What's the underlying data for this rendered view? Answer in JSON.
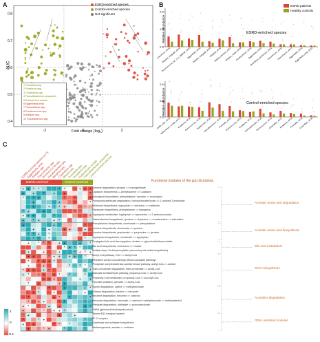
{
  "panelA": {
    "label": "A",
    "xlabel": "Fold change (log₂)",
    "ylabel": "AUC",
    "legend": [
      {
        "name": "ESRD-enriched species",
        "color": "#d9473c"
      },
      {
        "name": "Control-enriched species",
        "color": "#9aa31a"
      },
      {
        "name": "Not significant",
        "color": "#7a7a7a"
      }
    ],
    "species_key": [
      "1  Prevotella spp.",
      "2  Roseburia spp.",
      "3  Clostridium spp.",
      "4  Faecalibacterium prausnitzii",
      "5  Eubacterium rectale",
      "6  Eggerthella lenta",
      "7  Flavonifractor spp.",
      "8  Ruminococcus spp.",
      "9  Alistipes spp.",
      "10 Fusobacterium spp."
    ]
  },
  "panelB": {
    "label": "B",
    "ylabel": "Relative abundance",
    "legend": [
      {
        "name": "ESRD patients",
        "color": "#d9473c"
      },
      {
        "name": "Healthy controls",
        "color": "#9aa31a"
      }
    ],
    "top_title": "ESRD-enriched species",
    "bottom_title": "Control-enriched species",
    "top_species": [
      "Ruminococcaceae_bacterium_AF01",
      "Alistipes_finegoldii_AF02",
      "Ruminococcus_sp._5_1_39BFAA_AF03",
      "Eggerthella_AF04",
      "Alistipes_finegoldii_AF05",
      "Bilophila_AF06",
      "Blautia_hansenii_AF07",
      "Alistipes_shahii_AF08",
      "Fusobacterium_AF09",
      "Eggerthella_AF10",
      "Clostridium_symbiosum_AF11",
      "Flavonifractor_AF12",
      "Flavonifractor_AF13",
      "Eggerthella_AF14",
      "Eggerthella_lenta_AF15"
    ],
    "bottom_species": [
      "Prevotella_copri_AF16",
      "Eubacterium_rectale_AF17",
      "Roseburia_AF18",
      "Ruminococcus_AF19",
      "Eubacterium_AF20",
      "Faecalibacterium_AF21",
      "Prevotella_AF22",
      "Ruminococcus_AF23",
      "Roseburia_AF24",
      "Lachnospiraceae_AF25",
      "Ruminococcus_AF26",
      "Clostridium_AF27",
      "Roseburia_AF28",
      "Prevotella_AF29",
      "Clostridium_AF30"
    ]
  },
  "panelC": {
    "label": "C",
    "header_esrd": "ESRD-enriched",
    "header_control": "Control-enriched",
    "title": "Functional modules of the gut microbiota",
    "columns": [
      "ESRD-enriched species (n=?)",
      "Eggerthella lenta",
      "Alistipes spp.",
      "Flavonifractor spp.",
      "Ruminococcus spp.",
      "Fusobacterium spp.",
      "Bilophila spp.",
      "Clostridium spp.",
      "Blautia spp.",
      "Prevotella spp.",
      "Roseburia spp.",
      "Eubacterium rectale",
      "Faecalibacterium prausnitzii",
      "Control-enriched species"
    ],
    "functions": [
      "Tyrosine degradation, tyrosine => homogentisate",
      "Capsaicin biosynthesis, L-phenylalanine => Capsaicin",
      "Monolignol biosynthesis, phenylalanine / tyrosine => monolignol",
      "Homoprotocatechuate degradation, homoprotocatechuate => 2-oxohept-3-enedioate",
      "Melatonin biosynthesis, tryptophan => serotonin => melatonin",
      "Flavanone biosynthesis, phenylalanine => naringenin",
      "Tryptophan metabolism, tryptophan => kynurenine => 2-aminomuconate",
      "Catecholamine biosynthesis, tyrosine => dopamine => noradrenaline => adrenaline",
      "Phenylalanine biosynthesis, chorismate => phenylalanine",
      "Tyrosine biosynthesis, chorismate => tyrosine",
      "Tyrosine biosynthesis, prephenate => pretyrosine => tyrosine",
      "Tryptophan biosynthesis, chorismate => tryptophan",
      "Conjugated bile acid deconjugation, cholate => glycocholate/taurocholate",
      "Bile acid biosynthesis, cholesterol => cholate",
      "Multiple steps 7α-dehydroxylation (secondary bile acids biosynthesis)",
      "Acetyl-CoA pathway, CO2 => acetyl-CoA",
      "Reductive acetyl-CoA pathway (Wood-Ljungdahl pathway)",
      "Phosphate acetyltransferase-acetate kinase pathway, acetyl-CoA => acetate",
      "Trans-cinnamate degradation, trans-cinnamate => acetyl-CoA",
      "Malonate semialdehyde pathway, propanoyl-CoA => acetyl-CoA",
      "Propanoyl-CoA metabolism, propanoyl-CoA => succinyl-CoA",
      "Pyruvate oxidation, pyruvate => acetyl-CoA",
      "Xylene degradation, xylene => methylbenzoate",
      "Toluene degradation, toluene => benzoate",
      "Benzene degradation, benzene => catechol",
      "Benzoate degradation, benzoate => catechol / methylbenzoate => methylcatechol",
      "Phthalate degradation, phthalate => protocatechuate",
      "GABA (gamma-Aminobutyrate) shunt",
      "Vitamin B12 transport system",
      "PF-C complex",
      "Creatinase and sulfatase biosynthesis",
      "Methanogenesis, acetate => methane"
    ],
    "modules": [
      {
        "name": "Aromatic amino acid degradation",
        "rows": 8
      },
      {
        "name": "Aromatic amino acid biosynthesis",
        "rows": 4
      },
      {
        "name": "Bile acid metabolism",
        "rows": 3
      },
      {
        "name": "SCFA biosynthesis",
        "rows": 7
      },
      {
        "name": "Aromatics degradation",
        "rows": 6
      },
      {
        "name": "Other unrelated modules",
        "rows": 4
      }
    ],
    "scale": {
      "max": "2",
      "mid": "0",
      "min": "-0.4"
    }
  }
}
